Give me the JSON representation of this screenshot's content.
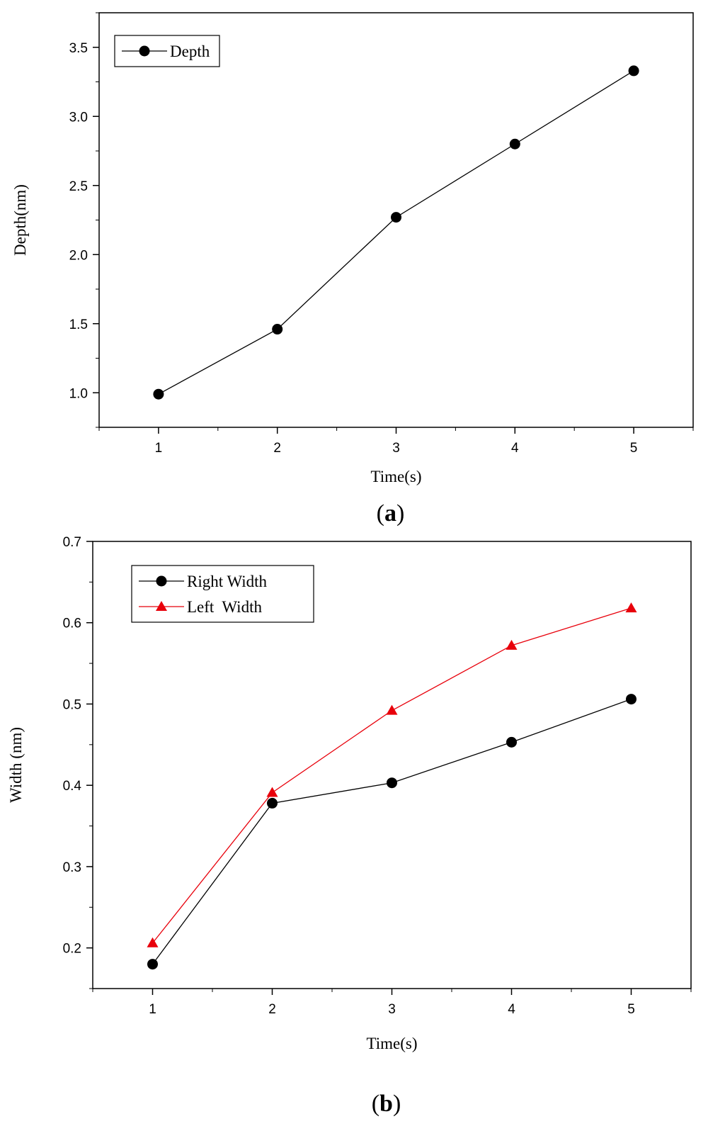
{
  "chart_data": [
    {
      "type": "line",
      "panel_label": "a",
      "xlabel": "Time(s)",
      "ylabel": "Depth(nm)",
      "x": [
        1,
        2,
        3,
        4,
        5
      ],
      "xlim": [
        0.5,
        5.5
      ],
      "ylim": [
        0.75,
        3.75
      ],
      "xticks": [
        1,
        2,
        3,
        4,
        5
      ],
      "yticks": [
        1.0,
        1.5,
        2.0,
        2.5,
        3.0,
        3.5
      ],
      "ytick_labels": [
        "1.0",
        "1.5",
        "2.0",
        "2.5",
        "3.0",
        "3.5"
      ],
      "legend_position": "top-left",
      "series": [
        {
          "name": "Depth",
          "marker": "circle",
          "color": "#000000",
          "values": [
            0.99,
            1.46,
            2.27,
            2.8,
            3.33
          ]
        }
      ]
    },
    {
      "type": "line",
      "panel_label": "b",
      "xlabel": "Time(s)",
      "ylabel": "Width (nm)",
      "x": [
        1,
        2,
        3,
        4,
        5
      ],
      "xlim": [
        0.5,
        5.5
      ],
      "ylim": [
        0.15,
        0.7
      ],
      "xticks": [
        1,
        2,
        3,
        4,
        5
      ],
      "yticks": [
        0.2,
        0.3,
        0.4,
        0.5,
        0.6,
        0.7
      ],
      "ytick_labels": [
        "0.2",
        "0.3",
        "0.4",
        "0.5",
        "0.6",
        "0.7"
      ],
      "legend_position": "top-left",
      "series": [
        {
          "name": "Right Width",
          "marker": "circle",
          "color": "#000000",
          "values": [
            0.18,
            0.378,
            0.403,
            0.453,
            0.506
          ]
        },
        {
          "name": "Left  Width",
          "marker": "triangle",
          "color": "#e8000b",
          "values": [
            0.206,
            0.391,
            0.492,
            0.572,
            0.618
          ]
        }
      ]
    }
  ]
}
